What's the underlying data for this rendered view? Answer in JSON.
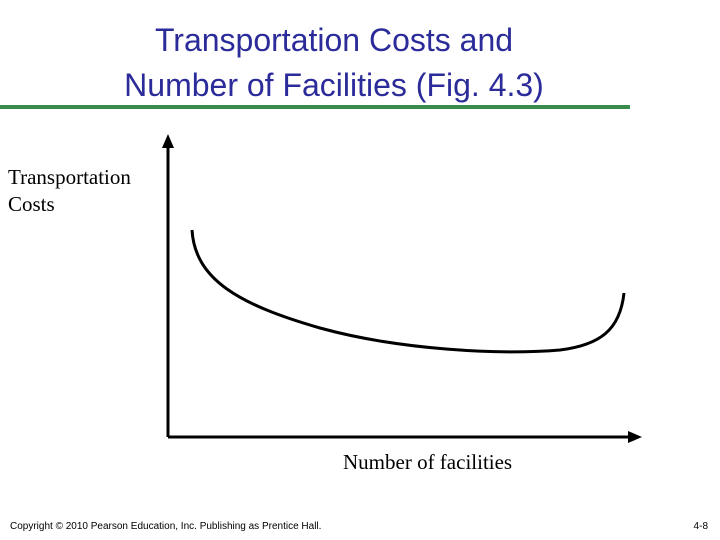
{
  "header": {
    "title_lines": [
      "Transportation Costs and",
      "Number of Facilities (Fig. 4.3)"
    ]
  },
  "diagram": {
    "y_axis_label_lines": [
      "Transportation",
      "Costs"
    ],
    "x_axis_label": "Number of facilities"
  },
  "footer": {
    "copyright": "Copyright © 2010 Pearson Education, Inc. Publishing as Prentice Hall.",
    "page": "4-8"
  }
}
